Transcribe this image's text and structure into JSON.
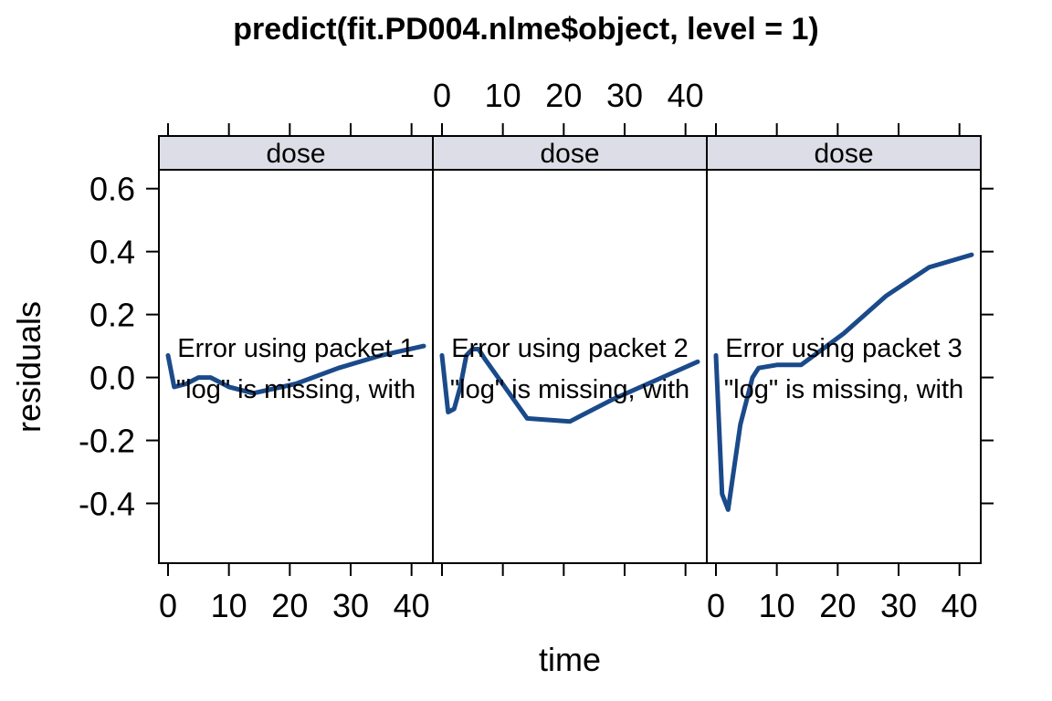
{
  "chart_data": {
    "type": "line",
    "title": "predict(fit.PD004.nlme$object, level = 1)",
    "xlabel": "time",
    "ylabel": "residuals",
    "xlim": [
      -1.5,
      43.5
    ],
    "ylim": [
      -0.59,
      0.66
    ],
    "x_ticks": [
      0,
      10,
      20,
      30,
      40
    ],
    "y_ticks": [
      -0.4,
      -0.2,
      0.0,
      0.2,
      0.4,
      0.6
    ],
    "y_tick_labels": [
      "-0.4",
      "-0.2",
      "0.0",
      "0.2",
      "0.4",
      "0.6"
    ],
    "x_tick_labels": [
      "0",
      "10",
      "20",
      "30",
      "40"
    ],
    "line_color": "#1a4a8a",
    "strip_color": "#dcdde6",
    "panels": [
      {
        "strip": "dose",
        "error_lines": [
          "Error using packet 1",
          "\"log\" is missing, with"
        ],
        "x": [
          0,
          1,
          3,
          5,
          7,
          10,
          14,
          21,
          28,
          35,
          42
        ],
        "y": [
          0.07,
          -0.03,
          -0.02,
          0.0,
          0.0,
          -0.03,
          -0.05,
          -0.02,
          0.03,
          0.07,
          0.1
        ]
      },
      {
        "strip": "dose",
        "error_lines": [
          "Error using packet 2",
          "\"log\" is missing, with"
        ],
        "x": [
          0,
          1,
          2,
          3,
          4,
          5,
          6,
          7,
          14,
          21,
          28,
          35,
          42
        ],
        "y": [
          0.07,
          -0.11,
          -0.1,
          -0.03,
          0.07,
          0.09,
          0.09,
          0.06,
          -0.13,
          -0.14,
          -0.07,
          -0.01,
          0.05
        ]
      },
      {
        "strip": "dose",
        "error_lines": [
          "Error using packet 3",
          "\"log\" is missing, with"
        ],
        "x": [
          0,
          1,
          2,
          4,
          6,
          7,
          10,
          14,
          21,
          28,
          35,
          42
        ],
        "y": [
          0.07,
          -0.37,
          -0.42,
          -0.15,
          0.0,
          0.03,
          0.04,
          0.04,
          0.14,
          0.26,
          0.35,
          0.39
        ]
      }
    ]
  }
}
